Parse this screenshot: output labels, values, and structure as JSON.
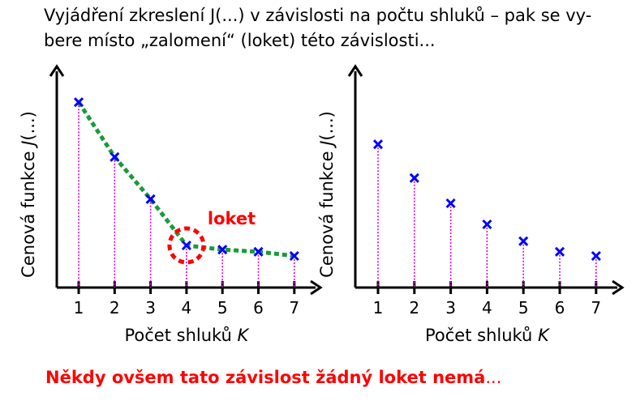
{
  "title_line1": "Vyjádření zkreslení J(...) v závislosti na počtu shluků – pak se vy-",
  "title_line2": "bere místo „zalomení“ (loket) této závislosti...",
  "footer_bold": "Někdy ovšem tato závislost žádný loket nemá",
  "footer_dots": "...",
  "colors": {
    "marker": "#0000ff",
    "curve": "#1a9a3a",
    "stem": "#e000e0",
    "elbow": "#ff0000",
    "footer": "#ff0000"
  },
  "chart_data": [
    {
      "type": "scatter",
      "xlabel": "Počet shluků K",
      "ylabel": "Cenová funkce J(...)",
      "categories": [
        "1",
        "2",
        "3",
        "4",
        "5",
        "6",
        "7"
      ],
      "x": [
        1,
        2,
        3,
        4,
        5,
        6,
        7
      ],
      "values": [
        0.88,
        0.62,
        0.42,
        0.2,
        0.18,
        0.17,
        0.15
      ],
      "ylim": [
        0,
        1
      ],
      "connected": true,
      "annotation": {
        "label": "loket",
        "x": 4
      }
    },
    {
      "type": "scatter",
      "xlabel": "Počet shluků K",
      "ylabel": "Cenová funkce J(...)",
      "categories": [
        "1",
        "2",
        "3",
        "4",
        "5",
        "6",
        "7"
      ],
      "x": [
        1,
        2,
        3,
        4,
        5,
        6,
        7
      ],
      "values": [
        0.68,
        0.52,
        0.4,
        0.3,
        0.22,
        0.17,
        0.15
      ],
      "ylim": [
        0,
        1
      ],
      "connected": false
    }
  ]
}
